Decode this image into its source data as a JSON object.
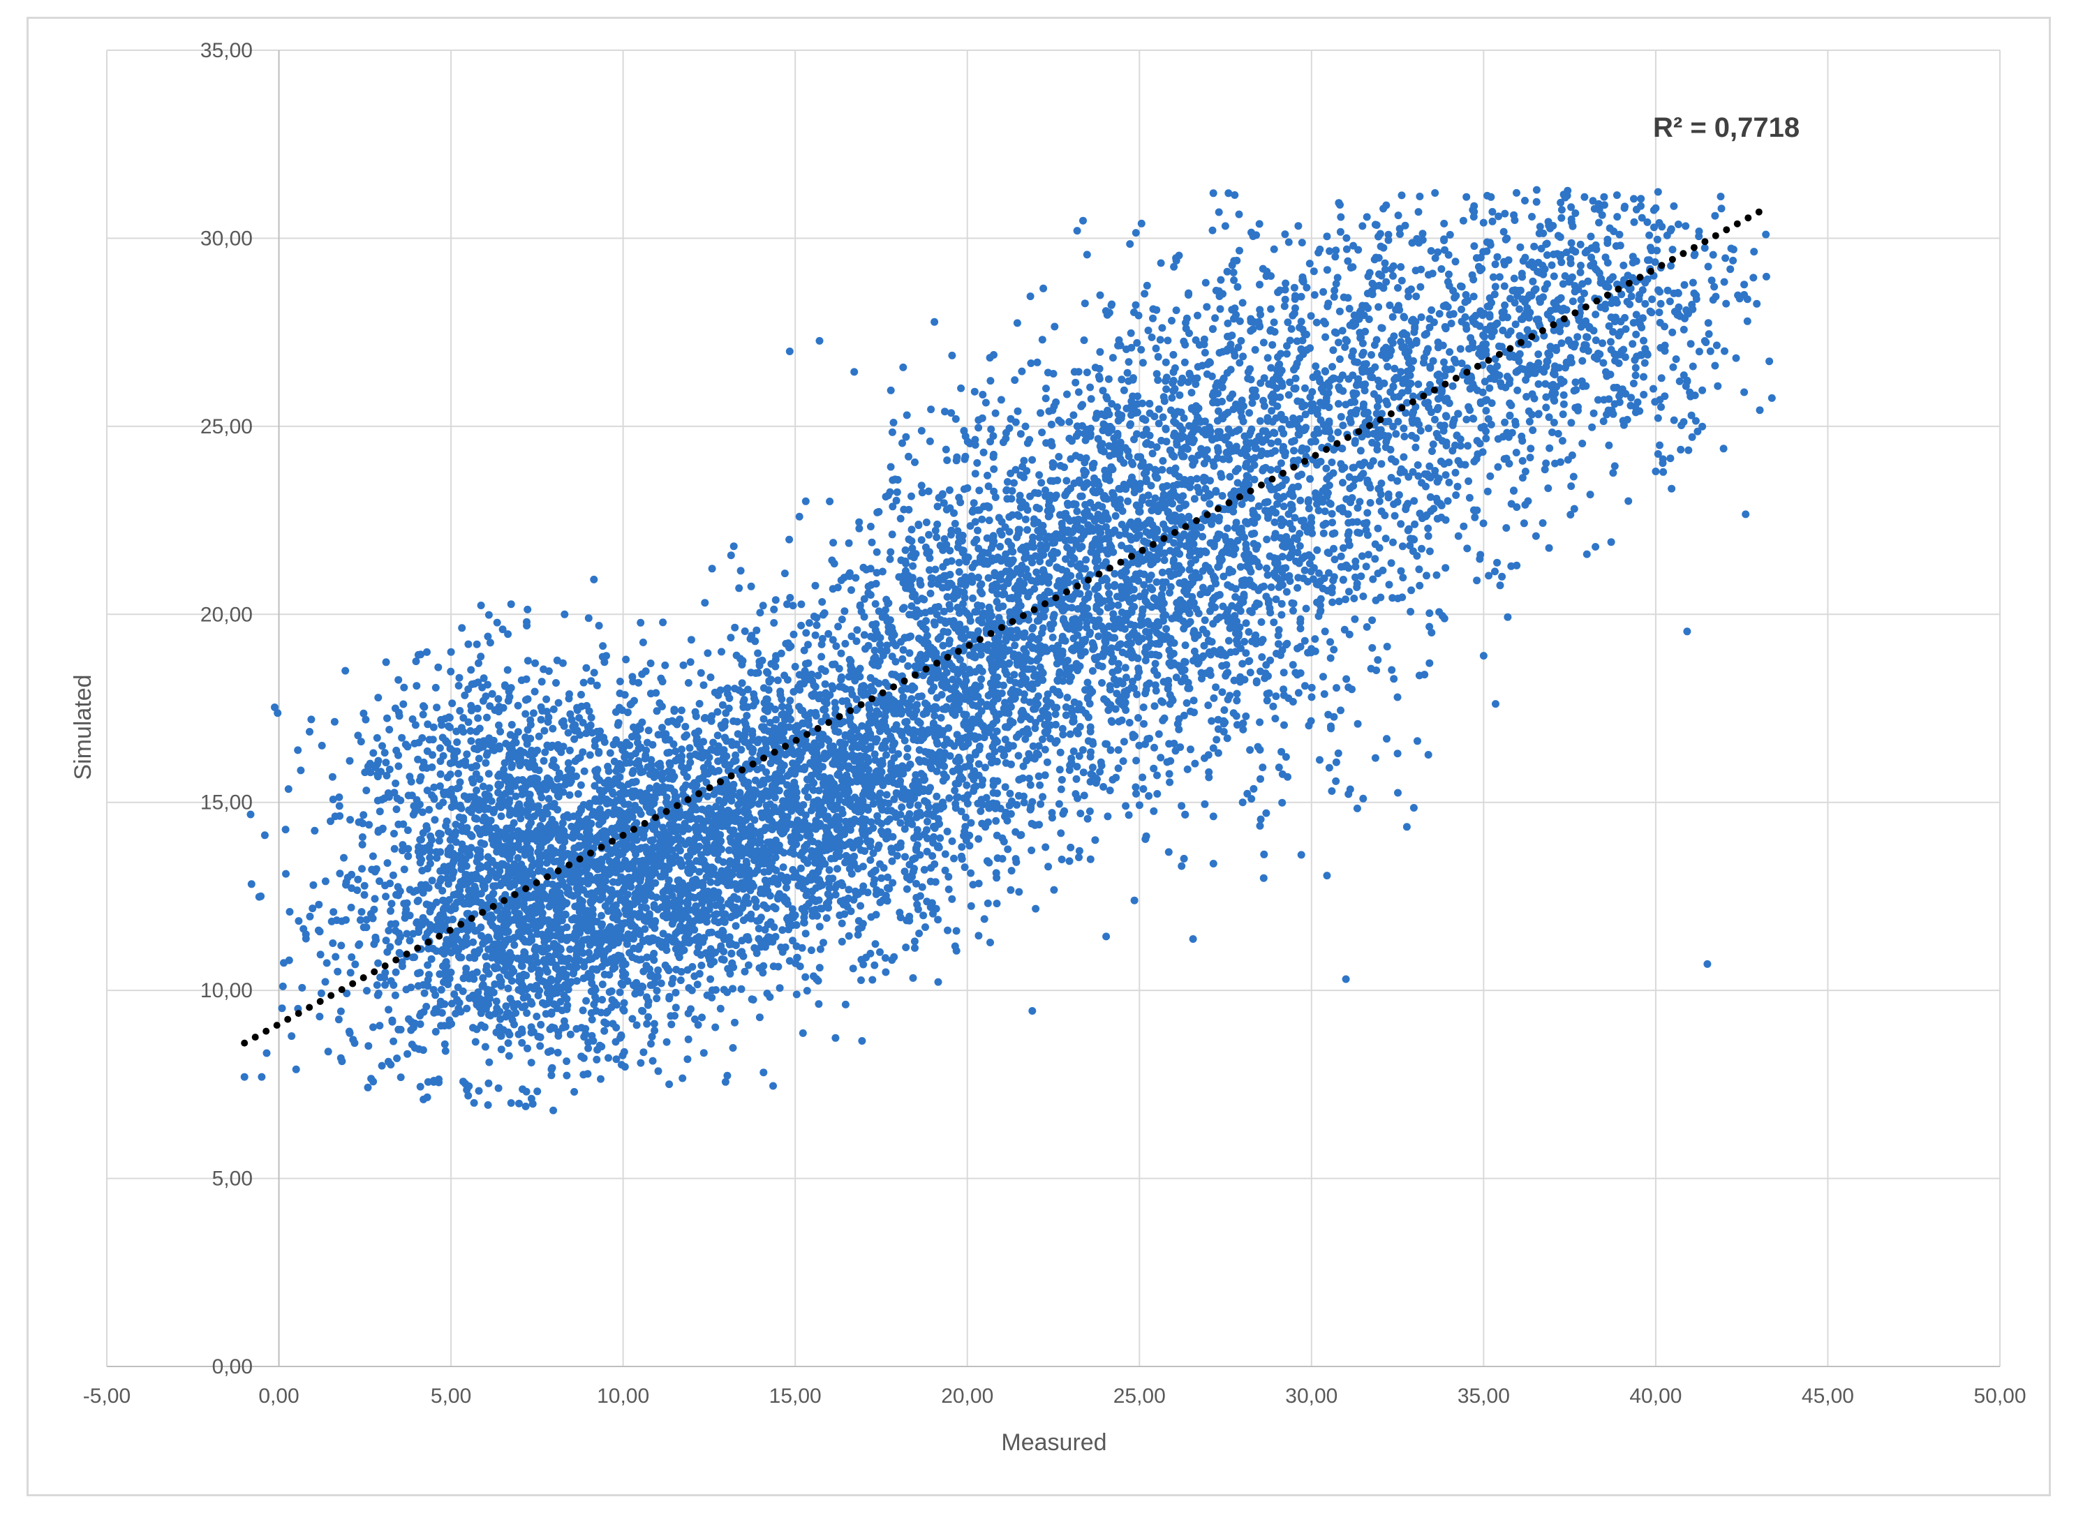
{
  "chart_data": {
    "type": "scatter",
    "title": "",
    "xlabel": "Measured",
    "ylabel": "Simulated",
    "xlim": [
      -5,
      50
    ],
    "ylim": [
      0,
      35
    ],
    "x_ticks": [
      -5,
      0,
      5,
      10,
      15,
      20,
      25,
      30,
      35,
      40,
      45,
      50
    ],
    "y_ticks": [
      0,
      5,
      10,
      15,
      20,
      25,
      30,
      35
    ],
    "x_tick_labels": [
      "-5,00",
      "0,00",
      "5,00",
      "10,00",
      "15,00",
      "20,00",
      "25,00",
      "30,00",
      "35,00",
      "40,00",
      "45,00",
      "50,00"
    ],
    "y_tick_labels": [
      "0,00",
      "5,00",
      "10,00",
      "15,00",
      "20,00",
      "25,00",
      "30,00",
      "35,00"
    ],
    "grid": true,
    "point_color": "#2e75c8",
    "trendline": {
      "style": "dotted",
      "color": "#000000",
      "x_start": -1.0,
      "y_start": 8.6,
      "x_end": 43.0,
      "y_end": 30.7,
      "r_squared_label": "R² = 0,7718"
    },
    "series": [
      {
        "points": [
          [
            -1.0,
            7.7
          ],
          [
            -0.5,
            7.7
          ],
          [
            0.3,
            10.8
          ],
          [
            0.5,
            7.9
          ],
          [
            1.0,
            12.8
          ],
          [
            1.5,
            14.5
          ],
          [
            1.8,
            8.2
          ],
          [
            2.2,
            8.6
          ],
          [
            2.5,
            15.8
          ],
          [
            3.0,
            16.5
          ],
          [
            3.5,
            17.3
          ],
          [
            4.0,
            18.1
          ],
          [
            4.2,
            7.1
          ],
          [
            4.5,
            7.6
          ],
          [
            5.0,
            19.0
          ],
          [
            5.5,
            7.2
          ],
          [
            5.8,
            18.7
          ],
          [
            6.5,
            19.6
          ],
          [
            7.2,
            19.7
          ],
          [
            8.3,
            20.0
          ],
          [
            9.0,
            19.9
          ],
          [
            9.3,
            19.7
          ],
          [
            31.0,
            10.3
          ],
          [
            41.5,
            10.7
          ],
          [
            34.5,
            31.1
          ],
          [
            36.2,
            31.0
          ],
          [
            38.5,
            31.1
          ],
          [
            40.0,
            30.8
          ],
          [
            42.0,
            27.0
          ],
          [
            43.2,
            30.1
          ],
          [
            40.0,
            23.8
          ],
          [
            38.0,
            21.6
          ],
          [
            35.0,
            18.9
          ],
          [
            32.5,
            16.3
          ],
          [
            31.5,
            15.1
          ],
          [
            28.0,
            15.0
          ],
          [
            25.2,
            14.1
          ],
          [
            23.0,
            13.8
          ],
          [
            15.0,
            12.0
          ],
          [
            12.0,
            10.0
          ],
          [
            10.0,
            9.5
          ],
          [
            8.0,
            9.0
          ],
          [
            6.0,
            8.5
          ],
          [
            3.5,
            11.0
          ],
          [
            2.0,
            13.0
          ]
        ],
        "cloud": [
          {
            "x": 7.0,
            "y": 12.0,
            "sx": 2.6,
            "sy": 2.1,
            "n": 1800
          },
          {
            "x": 11.5,
            "y": 13.5,
            "sx": 2.4,
            "sy": 1.9,
            "n": 1400
          },
          {
            "x": 16.0,
            "y": 15.5,
            "sx": 2.3,
            "sy": 2.0,
            "n": 1400
          },
          {
            "x": 20.5,
            "y": 18.7,
            "sx": 2.4,
            "sy": 2.6,
            "n": 1300
          },
          {
            "x": 24.5,
            "y": 21.8,
            "sx": 2.6,
            "sy": 2.6,
            "n": 1200
          },
          {
            "x": 29.0,
            "y": 24.5,
            "sx": 2.8,
            "sy": 2.7,
            "n": 1000
          },
          {
            "x": 34.0,
            "y": 26.8,
            "sx": 2.7,
            "sy": 2.4,
            "n": 750
          },
          {
            "x": 38.8,
            "y": 28.3,
            "sx": 2.0,
            "sy": 1.8,
            "n": 450
          },
          {
            "x": 27.5,
            "y": 19.0,
            "sx": 2.8,
            "sy": 2.3,
            "n": 350
          },
          {
            "x": 6.5,
            "y": 16.3,
            "sx": 2.2,
            "sy": 1.4,
            "n": 400
          }
        ]
      }
    ]
  }
}
